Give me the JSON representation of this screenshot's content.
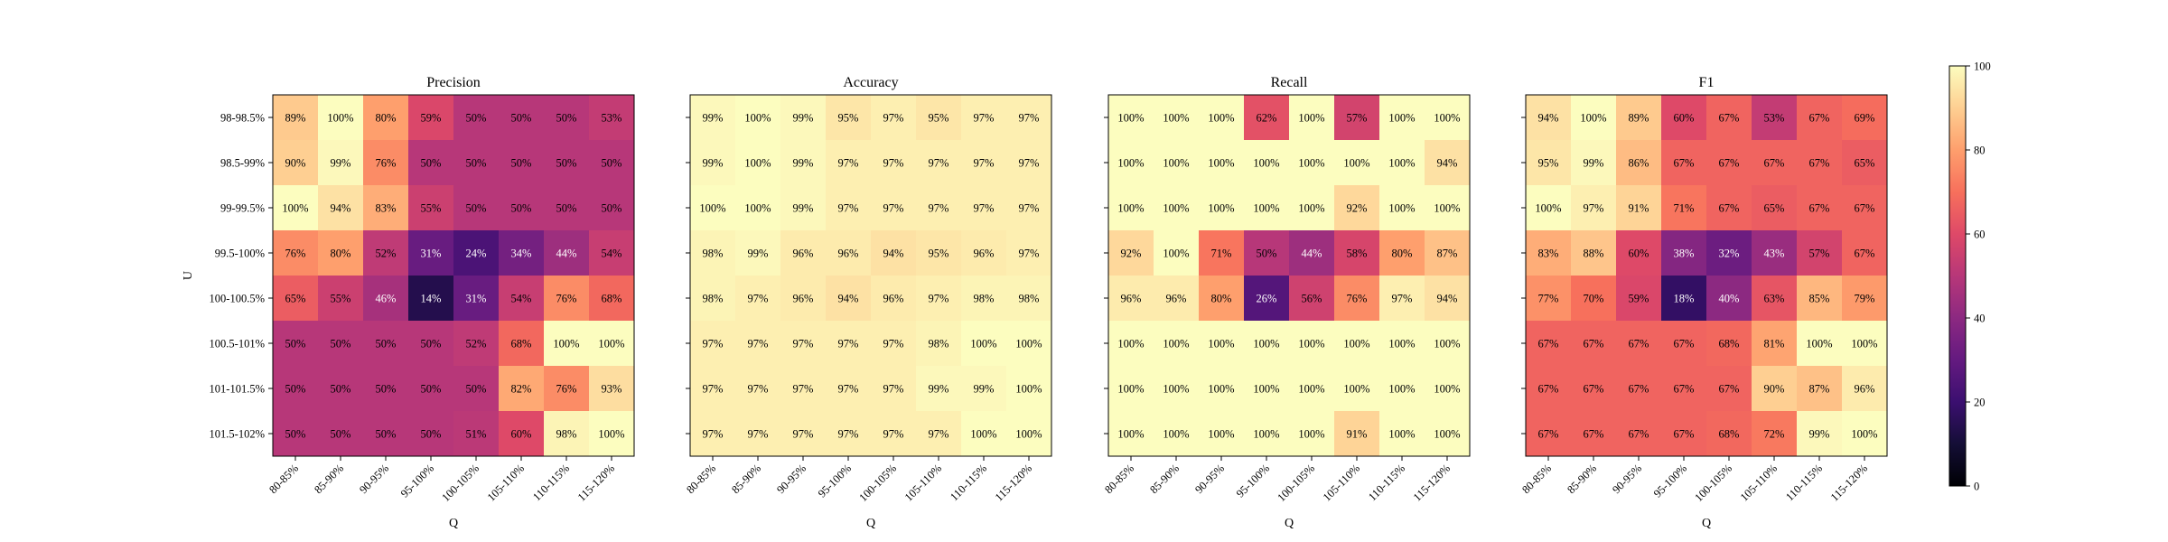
{
  "chart_data": {
    "type": "heatmap",
    "panels": [
      {
        "title": "Precision",
        "values": [
          [
            89,
            100,
            80,
            59,
            50,
            50,
            50,
            53
          ],
          [
            90,
            99,
            76,
            50,
            50,
            50,
            50,
            50
          ],
          [
            100,
            94,
            83,
            55,
            50,
            50,
            50,
            50
          ],
          [
            76,
            80,
            52,
            31,
            24,
            34,
            44,
            54
          ],
          [
            65,
            55,
            46,
            14,
            31,
            54,
            76,
            68
          ],
          [
            50,
            50,
            50,
            50,
            52,
            68,
            100,
            100
          ],
          [
            50,
            50,
            50,
            50,
            50,
            82,
            76,
            93
          ],
          [
            50,
            50,
            50,
            50,
            51,
            60,
            98,
            100
          ]
        ]
      },
      {
        "title": "Accuracy",
        "values": [
          [
            99,
            100,
            99,
            95,
            97,
            95,
            97,
            97
          ],
          [
            99,
            100,
            99,
            97,
            97,
            97,
            97,
            97
          ],
          [
            100,
            100,
            99,
            97,
            97,
            97,
            97,
            97
          ],
          [
            98,
            99,
            96,
            96,
            94,
            95,
            96,
            97
          ],
          [
            98,
            97,
            96,
            94,
            96,
            97,
            98,
            98
          ],
          [
            97,
            97,
            97,
            97,
            97,
            98,
            100,
            100
          ],
          [
            97,
            97,
            97,
            97,
            97,
            99,
            99,
            100
          ],
          [
            97,
            97,
            97,
            97,
            97,
            97,
            100,
            100
          ]
        ]
      },
      {
        "title": "Recall",
        "values": [
          [
            100,
            100,
            100,
            62,
            100,
            57,
            100,
            100
          ],
          [
            100,
            100,
            100,
            100,
            100,
            100,
            100,
            94
          ],
          [
            100,
            100,
            100,
            100,
            100,
            92,
            100,
            100
          ],
          [
            92,
            100,
            71,
            50,
            44,
            58,
            80,
            87
          ],
          [
            96,
            96,
            80,
            26,
            56,
            76,
            97,
            94
          ],
          [
            100,
            100,
            100,
            100,
            100,
            100,
            100,
            100
          ],
          [
            100,
            100,
            100,
            100,
            100,
            100,
            100,
            100
          ],
          [
            100,
            100,
            100,
            100,
            100,
            91,
            100,
            100
          ]
        ]
      },
      {
        "title": "F1",
        "values": [
          [
            94,
            100,
            89,
            60,
            67,
            53,
            67,
            69
          ],
          [
            95,
            99,
            86,
            67,
            67,
            67,
            67,
            65
          ],
          [
            100,
            97,
            91,
            71,
            67,
            65,
            67,
            67
          ],
          [
            83,
            88,
            60,
            38,
            32,
            43,
            57,
            67
          ],
          [
            77,
            70,
            59,
            18,
            40,
            63,
            85,
            79
          ],
          [
            67,
            67,
            67,
            67,
            68,
            81,
            100,
            100
          ],
          [
            67,
            67,
            67,
            67,
            67,
            90,
            87,
            96
          ],
          [
            67,
            67,
            67,
            67,
            68,
            72,
            99,
            100
          ]
        ]
      }
    ],
    "row_labels": [
      "98-98.5%",
      "98.5-99%",
      "99-99.5%",
      "99.5-100%",
      "100-100.5%",
      "100.5-101%",
      "101-101.5%",
      "101.5-102%"
    ],
    "col_labels": [
      "80-85%",
      "85-90%",
      "90-95%",
      "95-100%",
      "100-105%",
      "105-110%",
      "110-115%",
      "115-120%"
    ],
    "xlabel": "Q",
    "ylabel": "U",
    "value_suffix": "%",
    "colormap": "magma",
    "colorbar": {
      "range": [
        0,
        100
      ],
      "ticks": [
        0,
        20,
        40,
        60,
        80,
        100
      ]
    }
  }
}
